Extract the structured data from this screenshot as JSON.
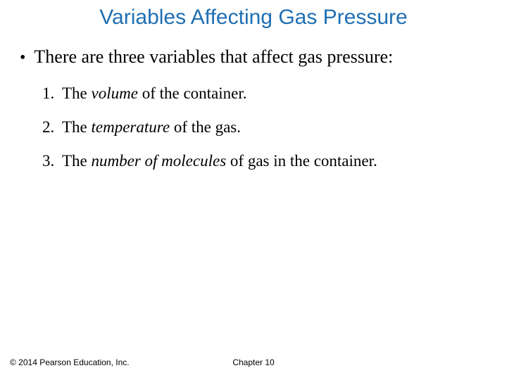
{
  "title": {
    "text": "Variables Affecting Gas Pressure",
    "color": "#1f6fb3",
    "fontsize": 30
  },
  "bullet": {
    "marker": "•",
    "text": "There are three variables that affect gas pressure:",
    "fontsize": 26,
    "color": "#000000"
  },
  "items": [
    {
      "num": "1.",
      "pre": "The ",
      "ital": "volume",
      "post": " of the container."
    },
    {
      "num": "2.",
      "pre": "The ",
      "ital": "temperature",
      "post": " of the gas."
    },
    {
      "num": "3.",
      "pre": "The ",
      "ital": "number of molecules",
      "post": " of gas in the container."
    }
  ],
  "item_style": {
    "fontsize": 23,
    "color": "#000000"
  },
  "footer": {
    "left": "© 2014 Pearson Education, Inc.",
    "center": "Chapter 10",
    "fontsize": 12,
    "color": "#000000"
  },
  "background_color": "#ffffff"
}
